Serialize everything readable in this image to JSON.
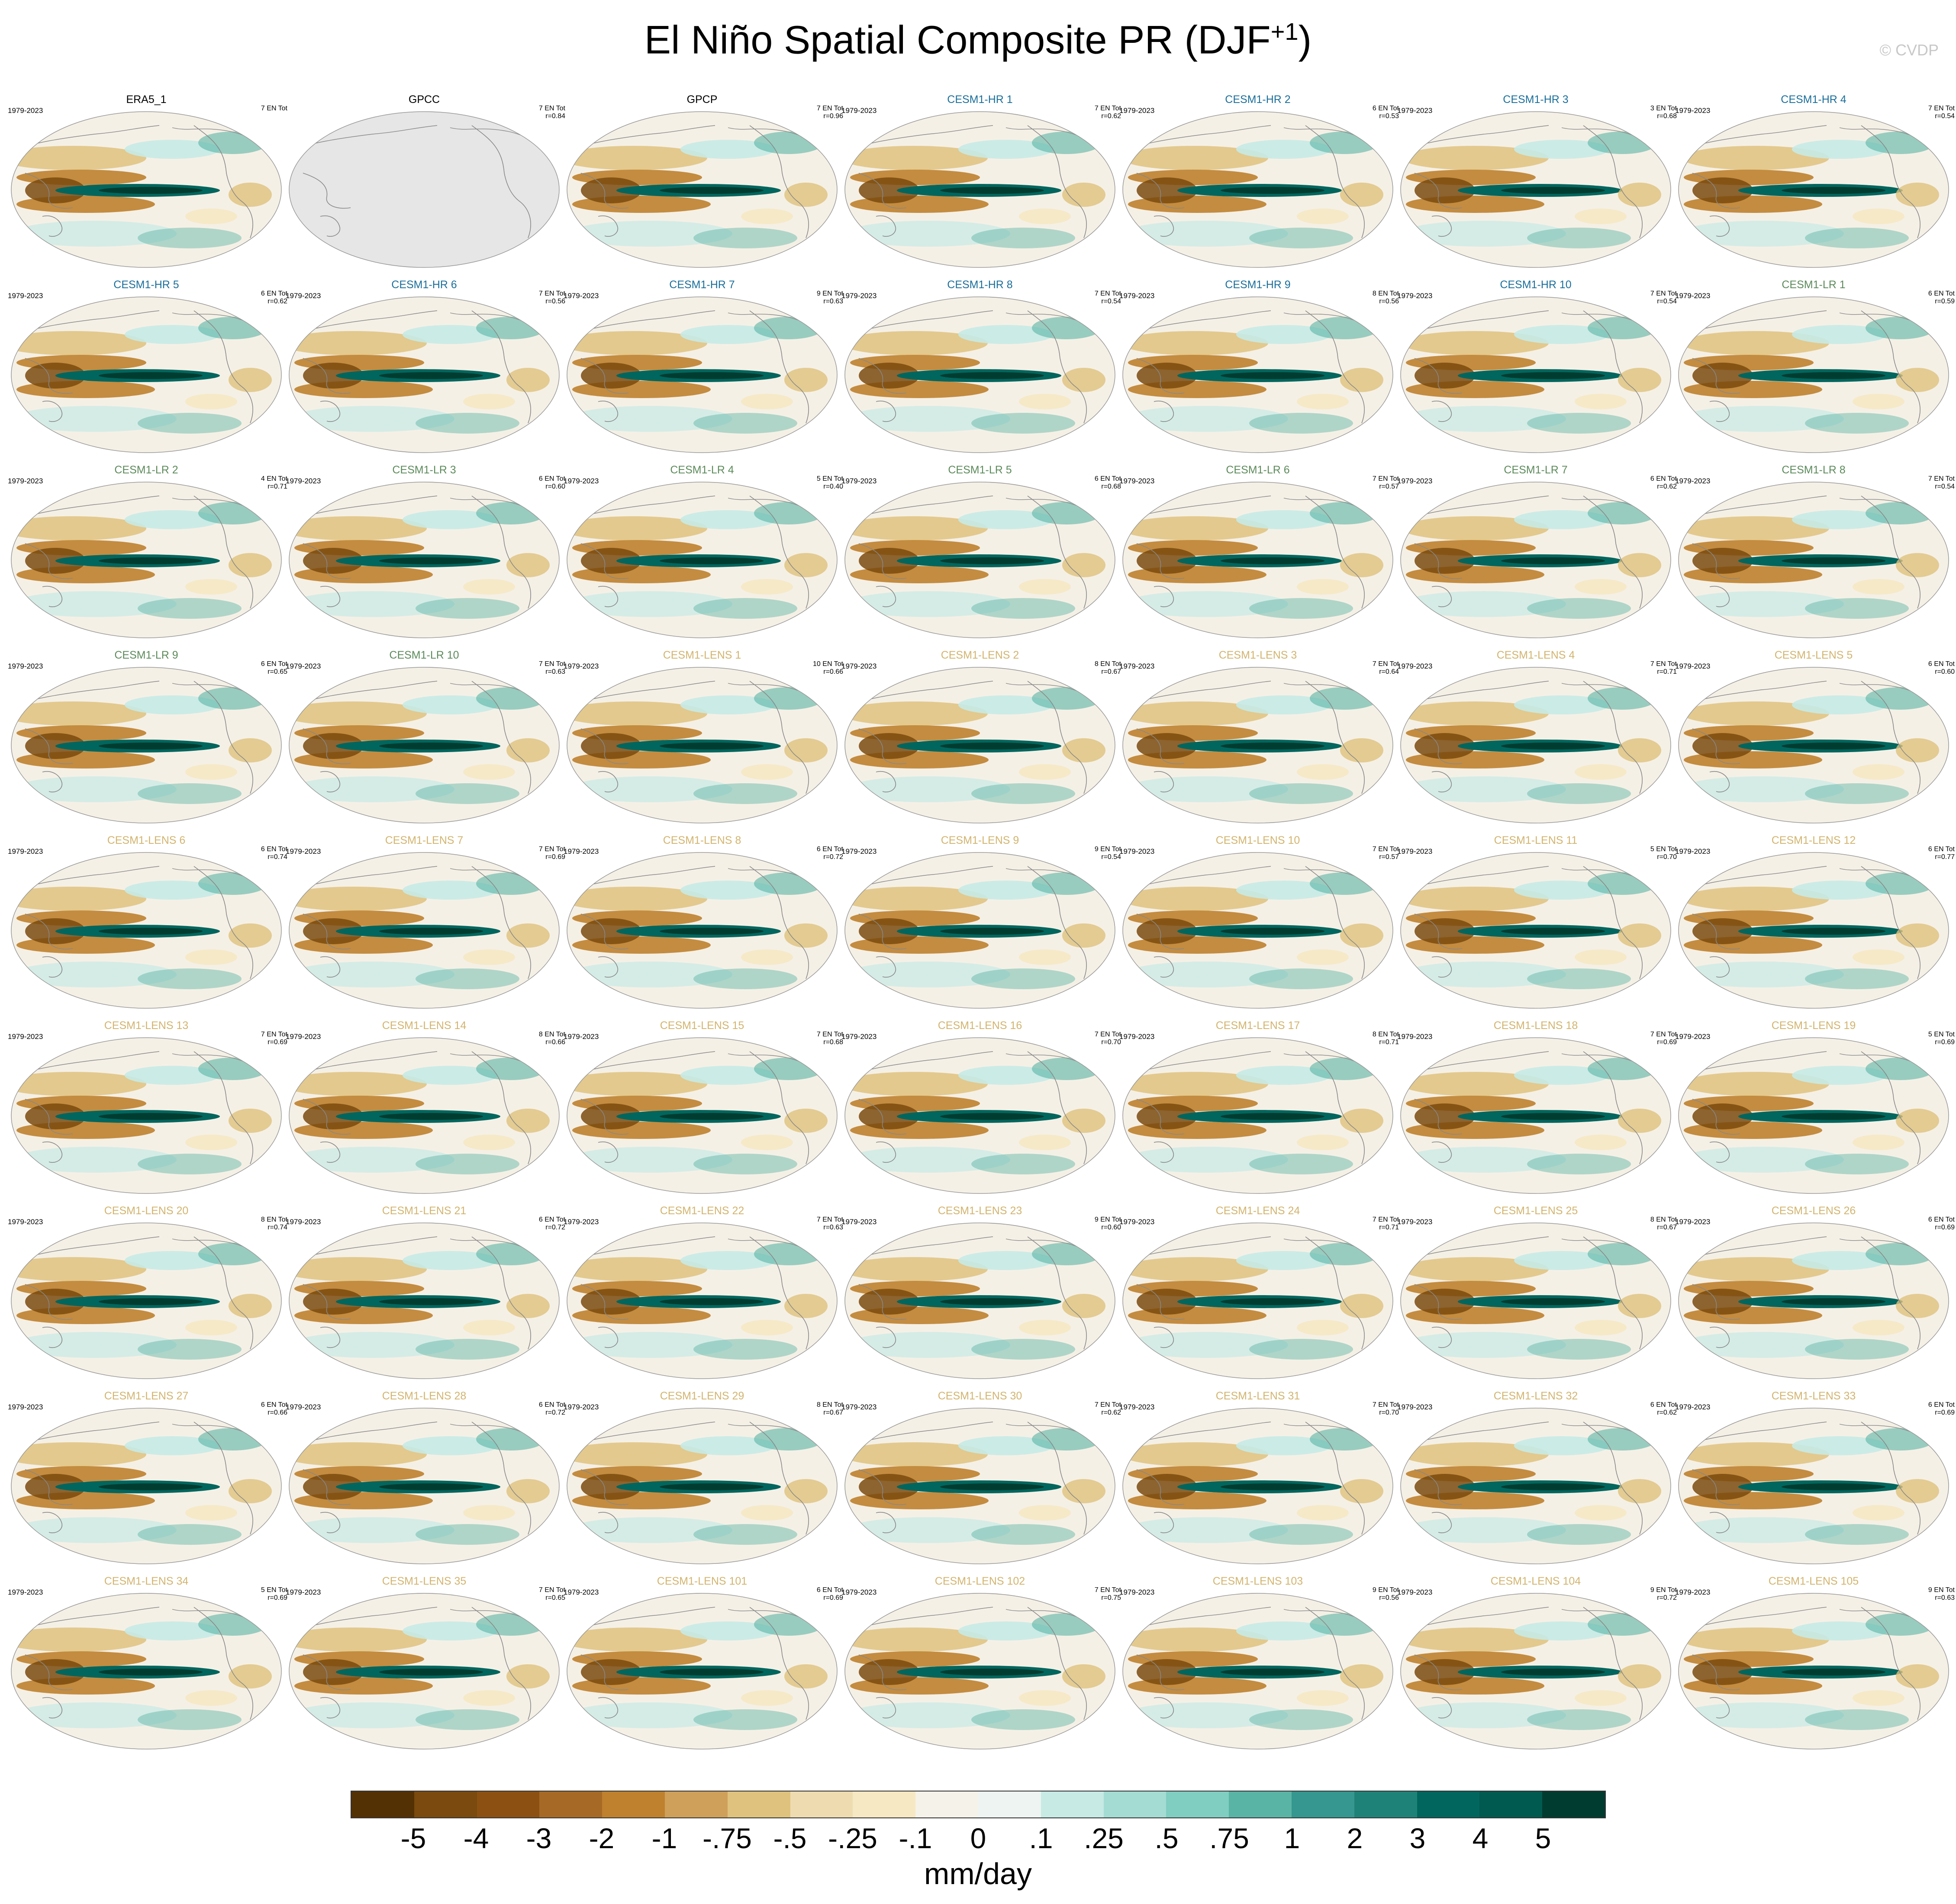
{
  "title": "El Niño Spatial Composite PR (DJF",
  "title_sup": "+1",
  "title_close": ")",
  "watermark": "© CVDP",
  "years": "1979-2023",
  "colors": {
    "obs": "#000000",
    "hr": "#1a6e9a",
    "lr": "#5b8a5a",
    "lens": "#d2b46e",
    "ocean_bg": "#f5f0e6",
    "land_missing": "#e6e6e6",
    "coast": "#888888"
  },
  "panels": [
    {
      "title": "ERA5_1",
      "group": "obs",
      "count": "7 EN Tot",
      "corr": "",
      "years": "1979-2023"
    },
    {
      "title": "GPCC",
      "group": "obs",
      "count": "7 EN Tot",
      "corr": "r=0.84",
      "years": "",
      "missing": true
    },
    {
      "title": "GPCP",
      "group": "obs",
      "count": "7 EN Tot",
      "corr": "r=0.96",
      "years": ""
    },
    {
      "title": "CESM1-HR 1",
      "group": "hr",
      "count": "7 EN Tot",
      "corr": "r=0.62",
      "years": "1979-2023"
    },
    {
      "title": "CESM1-HR 2",
      "group": "hr",
      "count": "6 EN Tot",
      "corr": "r=0.53",
      "years": "1979-2023"
    },
    {
      "title": "CESM1-HR 3",
      "group": "hr",
      "count": "3 EN Tot",
      "corr": "r=0.68",
      "years": "1979-2023"
    },
    {
      "title": "CESM1-HR 4",
      "group": "hr",
      "count": "7 EN Tot",
      "corr": "r=0.54",
      "years": "1979-2023"
    },
    {
      "title": "CESM1-HR 5",
      "group": "hr",
      "count": "6 EN Tot",
      "corr": "r=0.62",
      "years": "1979-2023"
    },
    {
      "title": "CESM1-HR 6",
      "group": "hr",
      "count": "7 EN Tot",
      "corr": "r=0.56",
      "years": "1979-2023"
    },
    {
      "title": "CESM1-HR 7",
      "group": "hr",
      "count": "9 EN Tot",
      "corr": "r=0.63",
      "years": "1979-2023"
    },
    {
      "title": "CESM1-HR 8",
      "group": "hr",
      "count": "7 EN Tot",
      "corr": "r=0.54",
      "years": "1979-2023"
    },
    {
      "title": "CESM1-HR 9",
      "group": "hr",
      "count": "8 EN Tot",
      "corr": "r=0.56",
      "years": "1979-2023"
    },
    {
      "title": "CESM1-HR 10",
      "group": "hr",
      "count": "7 EN Tot",
      "corr": "r=0.54",
      "years": "1979-2023"
    },
    {
      "title": "CESM1-LR 1",
      "group": "lr",
      "count": "6 EN Tot",
      "corr": "r=0.59",
      "years": "1979-2023"
    },
    {
      "title": "CESM1-LR 2",
      "group": "lr",
      "count": "4 EN Tot",
      "corr": "r=0.71",
      "years": "1979-2023"
    },
    {
      "title": "CESM1-LR 3",
      "group": "lr",
      "count": "6 EN Tot",
      "corr": "r=0.60",
      "years": "1979-2023"
    },
    {
      "title": "CESM1-LR 4",
      "group": "lr",
      "count": "5 EN Tot",
      "corr": "r=0.40",
      "years": "1979-2023"
    },
    {
      "title": "CESM1-LR 5",
      "group": "lr",
      "count": "6 EN Tot",
      "corr": "r=0.68",
      "years": "1979-2023"
    },
    {
      "title": "CESM1-LR 6",
      "group": "lr",
      "count": "7 EN Tot",
      "corr": "r=0.57",
      "years": "1979-2023"
    },
    {
      "title": "CESM1-LR 7",
      "group": "lr",
      "count": "6 EN Tot",
      "corr": "r=0.62",
      "years": "1979-2023"
    },
    {
      "title": "CESM1-LR 8",
      "group": "lr",
      "count": "7 EN Tot",
      "corr": "r=0.54",
      "years": "1979-2023"
    },
    {
      "title": "CESM1-LR 9",
      "group": "lr",
      "count": "6 EN Tot",
      "corr": "r=0.65",
      "years": "1979-2023"
    },
    {
      "title": "CESM1-LR 10",
      "group": "lr",
      "count": "7 EN Tot",
      "corr": "r=0.63",
      "years": "1979-2023"
    },
    {
      "title": "CESM1-LENS 1",
      "group": "lens",
      "count": "10 EN Tot",
      "corr": "r=0.66",
      "years": "1979-2023"
    },
    {
      "title": "CESM1-LENS 2",
      "group": "lens",
      "count": "8 EN Tot",
      "corr": "r=0.67",
      "years": "1979-2023"
    },
    {
      "title": "CESM1-LENS 3",
      "group": "lens",
      "count": "7 EN Tot",
      "corr": "r=0.64",
      "years": "1979-2023"
    },
    {
      "title": "CESM1-LENS 4",
      "group": "lens",
      "count": "7 EN Tot",
      "corr": "r=0.71",
      "years": "1979-2023"
    },
    {
      "title": "CESM1-LENS 5",
      "group": "lens",
      "count": "6 EN Tot",
      "corr": "r=0.60",
      "years": "1979-2023"
    },
    {
      "title": "CESM1-LENS 6",
      "group": "lens",
      "count": "6 EN Tot",
      "corr": "r=0.74",
      "years": "1979-2023"
    },
    {
      "title": "CESM1-LENS 7",
      "group": "lens",
      "count": "7 EN Tot",
      "corr": "r=0.69",
      "years": "1979-2023"
    },
    {
      "title": "CESM1-LENS 8",
      "group": "lens",
      "count": "6 EN Tot",
      "corr": "r=0.72",
      "years": "1979-2023"
    },
    {
      "title": "CESM1-LENS 9",
      "group": "lens",
      "count": "9 EN Tot",
      "corr": "r=0.54",
      "years": "1979-2023"
    },
    {
      "title": "CESM1-LENS 10",
      "group": "lens",
      "count": "7 EN Tot",
      "corr": "r=0.57",
      "years": "1979-2023"
    },
    {
      "title": "CESM1-LENS 11",
      "group": "lens",
      "count": "5 EN Tot",
      "corr": "r=0.70",
      "years": "1979-2023"
    },
    {
      "title": "CESM1-LENS 12",
      "group": "lens",
      "count": "6 EN Tot",
      "corr": "r=0.77",
      "years": "1979-2023"
    },
    {
      "title": "CESM1-LENS 13",
      "group": "lens",
      "count": "7 EN Tot",
      "corr": "r=0.69",
      "years": "1979-2023"
    },
    {
      "title": "CESM1-LENS 14",
      "group": "lens",
      "count": "8 EN Tot",
      "corr": "r=0.66",
      "years": "1979-2023"
    },
    {
      "title": "CESM1-LENS 15",
      "group": "lens",
      "count": "7 EN Tot",
      "corr": "r=0.68",
      "years": "1979-2023"
    },
    {
      "title": "CESM1-LENS 16",
      "group": "lens",
      "count": "7 EN Tot",
      "corr": "r=0.70",
      "years": "1979-2023"
    },
    {
      "title": "CESM1-LENS 17",
      "group": "lens",
      "count": "8 EN Tot",
      "corr": "r=0.71",
      "years": "1979-2023"
    },
    {
      "title": "CESM1-LENS 18",
      "group": "lens",
      "count": "7 EN Tot",
      "corr": "r=0.69",
      "years": "1979-2023"
    },
    {
      "title": "CESM1-LENS 19",
      "group": "lens",
      "count": "5 EN Tot",
      "corr": "r=0.69",
      "years": "1979-2023"
    },
    {
      "title": "CESM1-LENS 20",
      "group": "lens",
      "count": "8 EN Tot",
      "corr": "r=0.74",
      "years": "1979-2023"
    },
    {
      "title": "CESM1-LENS 21",
      "group": "lens",
      "count": "6 EN Tot",
      "corr": "r=0.72",
      "years": "1979-2023"
    },
    {
      "title": "CESM1-LENS 22",
      "group": "lens",
      "count": "7 EN Tot",
      "corr": "r=0.63",
      "years": "1979-2023"
    },
    {
      "title": "CESM1-LENS 23",
      "group": "lens",
      "count": "9 EN Tot",
      "corr": "r=0.60",
      "years": "1979-2023"
    },
    {
      "title": "CESM1-LENS 24",
      "group": "lens",
      "count": "7 EN Tot",
      "corr": "r=0.71",
      "years": "1979-2023"
    },
    {
      "title": "CESM1-LENS 25",
      "group": "lens",
      "count": "8 EN Tot",
      "corr": "r=0.67",
      "years": "1979-2023"
    },
    {
      "title": "CESM1-LENS 26",
      "group": "lens",
      "count": "6 EN Tot",
      "corr": "r=0.69",
      "years": "1979-2023"
    },
    {
      "title": "CESM1-LENS 27",
      "group": "lens",
      "count": "6 EN Tot",
      "corr": "r=0.66",
      "years": "1979-2023"
    },
    {
      "title": "CESM1-LENS 28",
      "group": "lens",
      "count": "6 EN Tot",
      "corr": "r=0.72",
      "years": "1979-2023"
    },
    {
      "title": "CESM1-LENS 29",
      "group": "lens",
      "count": "8 EN Tot",
      "corr": "r=0.67",
      "years": "1979-2023"
    },
    {
      "title": "CESM1-LENS 30",
      "group": "lens",
      "count": "7 EN Tot",
      "corr": "r=0.62",
      "years": "1979-2023"
    },
    {
      "title": "CESM1-LENS 31",
      "group": "lens",
      "count": "7 EN Tot",
      "corr": "r=0.70",
      "years": "1979-2023"
    },
    {
      "title": "CESM1-LENS 32",
      "group": "lens",
      "count": "6 EN Tot",
      "corr": "r=0.62",
      "years": "1979-2023"
    },
    {
      "title": "CESM1-LENS 33",
      "group": "lens",
      "count": "6 EN Tot",
      "corr": "r=0.69",
      "years": "1979-2023"
    },
    {
      "title": "CESM1-LENS 34",
      "group": "lens",
      "count": "5 EN Tot",
      "corr": "r=0.69",
      "years": "1979-2023"
    },
    {
      "title": "CESM1-LENS 35",
      "group": "lens",
      "count": "7 EN Tot",
      "corr": "r=0.65",
      "years": "1979-2023"
    },
    {
      "title": "CESM1-LENS 101",
      "group": "lens",
      "count": "6 EN Tot",
      "corr": "r=0.69",
      "years": "1979-2023"
    },
    {
      "title": "CESM1-LENS 102",
      "group": "lens",
      "count": "7 EN Tot",
      "corr": "r=0.75",
      "years": "1979-2023"
    },
    {
      "title": "CESM1-LENS 103",
      "group": "lens",
      "count": "9 EN Tot",
      "corr": "r=0.56",
      "years": "1979-2023"
    },
    {
      "title": "CESM1-LENS 104",
      "group": "lens",
      "count": "9 EN Tot",
      "corr": "r=0.72",
      "years": "1979-2023"
    },
    {
      "title": "CESM1-LENS 105",
      "group": "lens",
      "count": "9 EN Tot",
      "corr": "r=0.63",
      "years": "1979-2023"
    }
  ],
  "colorbar": {
    "colors": [
      "#543005",
      "#7a4a0e",
      "#8c5112",
      "#a66a26",
      "#bf812d",
      "#cfa05a",
      "#dfc27d",
      "#eedcb0",
      "#f6e8c3",
      "#f5f2ea",
      "#eef4f2",
      "#c7eae5",
      "#a4dcd3",
      "#80cdc1",
      "#5ab4a5",
      "#35978f",
      "#1f8278",
      "#01665e",
      "#005a4f",
      "#003c30"
    ],
    "labels": [
      "-5",
      "-4",
      "-3",
      "-2",
      "-1",
      "-.75",
      "-.5",
      "-.25",
      "-.1",
      "0",
      ".1",
      ".25",
      ".5",
      ".75",
      "1",
      "2",
      "3",
      "4",
      "5"
    ],
    "units": "mm/day"
  }
}
